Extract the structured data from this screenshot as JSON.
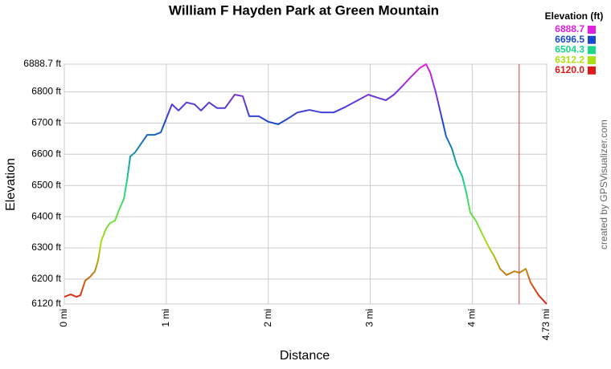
{
  "chart_data": {
    "type": "line",
    "title": "William F Hayden Park at Green Mountain",
    "x_label": "Distance",
    "y_label": "Elevation",
    "credit": "created by GPSVisualizer.com",
    "legend_title": "Elevation (ft)",
    "legend": [
      {
        "value": 6888.7,
        "color": "#e020e0"
      },
      {
        "value": 6696.5,
        "color": "#1848d0"
      },
      {
        "value": 6504.3,
        "color": "#18d888"
      },
      {
        "value": 6312.2,
        "color": "#a8e010"
      },
      {
        "value": 6120,
        "label": "6120.0",
        "color": "#e01818"
      }
    ],
    "x": [
      0,
      0.063,
      0.118,
      0.158,
      0.205,
      0.252,
      0.3,
      0.331,
      0.363,
      0.41,
      0.45,
      0.497,
      0.536,
      0.584,
      0.615,
      0.647,
      0.694,
      0.749,
      0.812,
      0.883,
      0.946,
      1.009,
      1.056,
      1.12,
      1.198,
      1.277,
      1.34,
      1.419,
      1.498,
      1.576,
      1.671,
      1.75,
      1.813,
      1.907,
      2.002,
      2.097,
      2.191,
      2.286,
      2.404,
      2.523,
      2.641,
      2.759,
      2.878,
      2.98,
      3.075,
      3.153,
      3.232,
      3.311,
      3.405,
      3.484,
      3.547,
      3.587,
      3.642,
      3.689,
      3.744,
      3.8,
      3.847,
      3.902,
      3.942,
      3.981,
      4.036,
      4.099,
      4.162,
      4.217,
      4.273,
      4.336,
      4.414,
      4.462,
      4.525,
      4.572,
      4.651,
      4.73
    ],
    "values": [
      6143,
      6151,
      6143,
      6148,
      6195,
      6207,
      6225,
      6259,
      6323,
      6362,
      6380,
      6387,
      6421,
      6457,
      6516,
      6593,
      6606,
      6632,
      6662,
      6662,
      6670,
      6722,
      6760,
      6740,
      6766,
      6760,
      6740,
      6766,
      6748,
      6748,
      6791,
      6786,
      6722,
      6722,
      6704,
      6696,
      6714,
      6734,
      6742,
      6734,
      6734,
      6752,
      6773,
      6791,
      6781,
      6773,
      6791,
      6817,
      6850,
      6876,
      6888.7,
      6863,
      6799,
      6734,
      6657,
      6619,
      6567,
      6529,
      6477,
      6413,
      6387,
      6344,
      6303,
      6272,
      6233,
      6213,
      6225,
      6220,
      6233,
      6189,
      6148,
      6120
    ],
    "xlim": [
      0,
      4.73
    ],
    "ylim": [
      6120,
      6888.7
    ],
    "xticks": [
      {
        "value": 0,
        "label": "0 mi"
      },
      {
        "value": 1,
        "label": "1 mi"
      },
      {
        "value": 2,
        "label": "2 mi"
      },
      {
        "value": 3,
        "label": "3 mi"
      },
      {
        "value": 4,
        "label": "4 mi"
      },
      {
        "value": 4.73,
        "label": "4.73 mi"
      }
    ],
    "yticks": [
      {
        "value": 6120,
        "label": "6120 ft"
      },
      {
        "value": 6200,
        "label": "6200 ft"
      },
      {
        "value": 6300,
        "label": "6300 ft"
      },
      {
        "value": 6400,
        "label": "6400 ft"
      },
      {
        "value": 6500,
        "label": "6500 ft"
      },
      {
        "value": 6600,
        "label": "6600 ft"
      },
      {
        "value": 6700,
        "label": "6700 ft"
      },
      {
        "value": 6800,
        "label": "6800 ft"
      },
      {
        "value": 6888.7,
        "label": "6888.7 ft"
      }
    ],
    "grid": true,
    "marker_x": 4.46,
    "marker_color": "#d04040"
  }
}
